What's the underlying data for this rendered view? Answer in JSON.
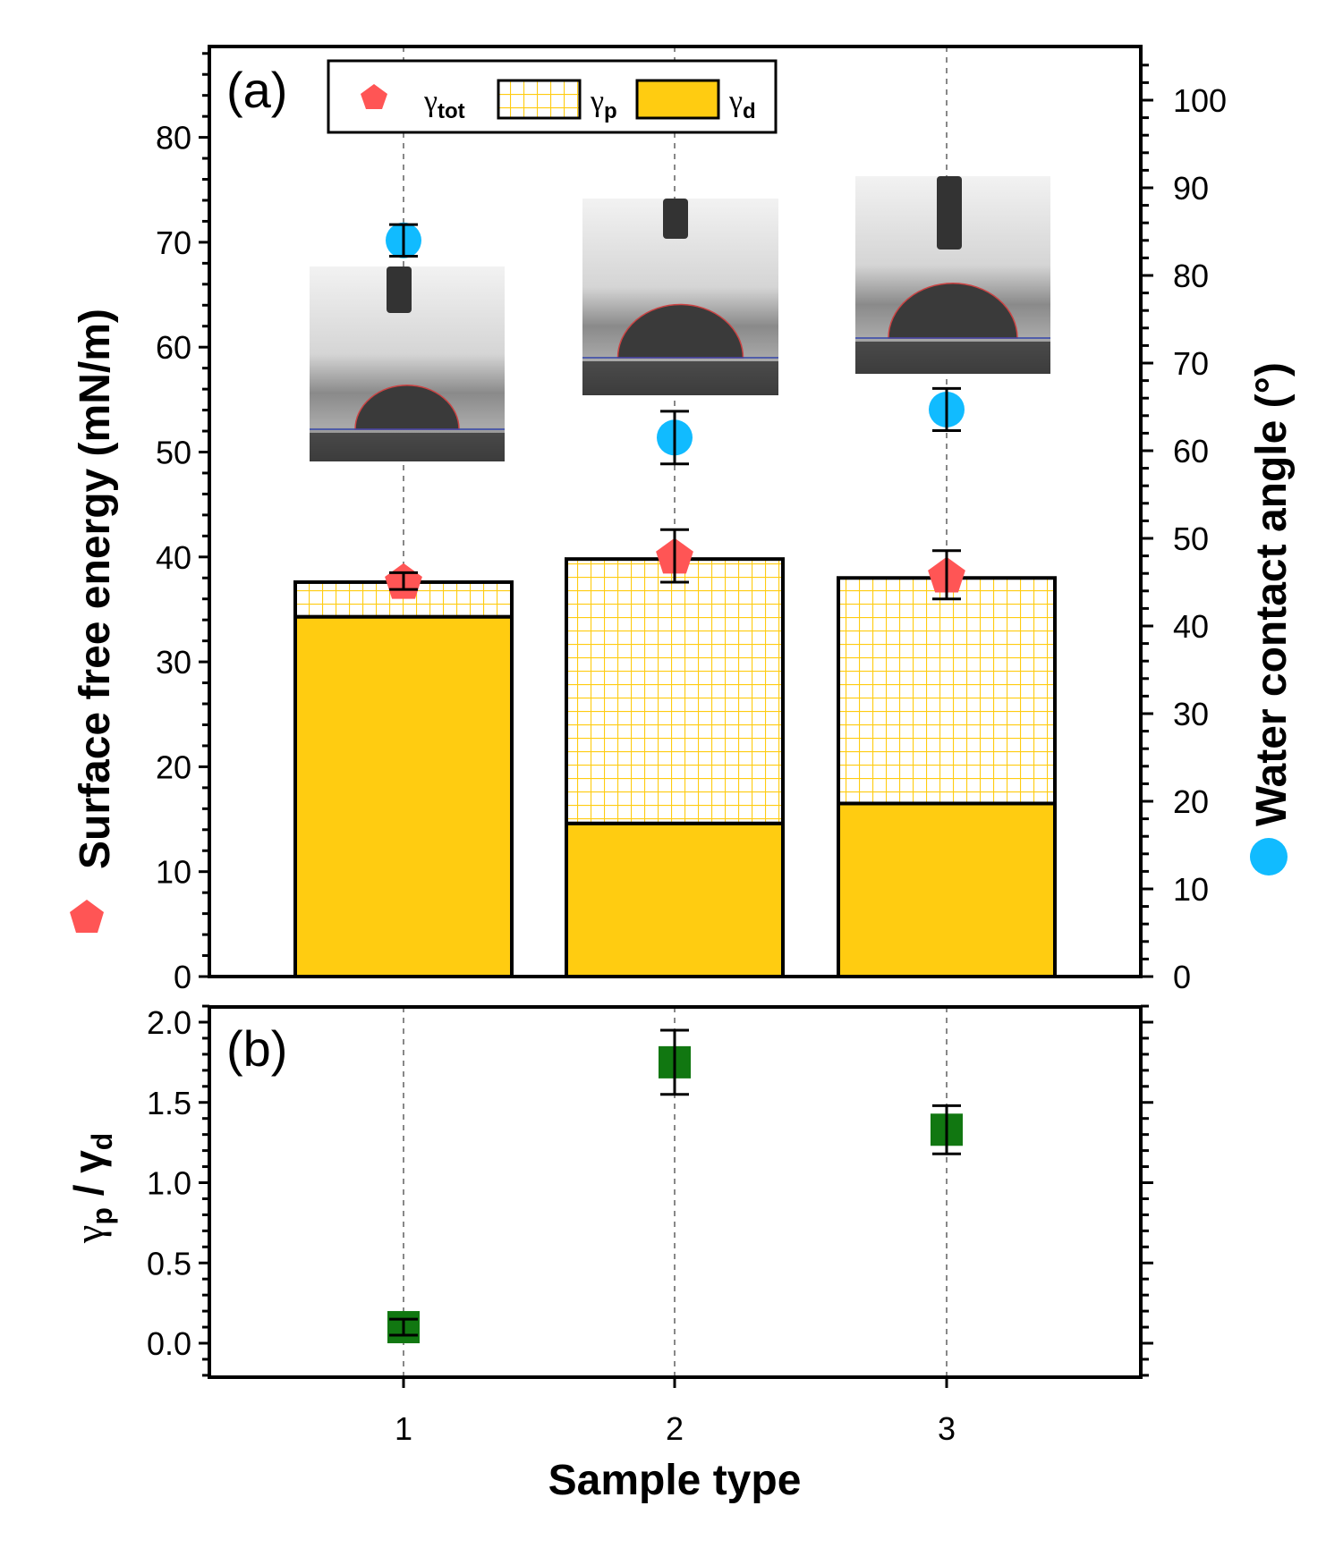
{
  "chart_data": [
    {
      "panel": "(a)",
      "type": "bar",
      "stacked": true,
      "categories": [
        "1",
        "2",
        "3"
      ],
      "series": [
        {
          "name": "γd",
          "values": [
            34.3,
            14.6,
            16.5
          ],
          "color": "#FFCC11",
          "pattern": "solid"
        },
        {
          "name": "γp",
          "values": [
            3.3,
            25.2,
            21.5
          ],
          "color": "#FFCC11",
          "pattern": "grid"
        }
      ],
      "points": [
        {
          "name": "γtot",
          "axis": "left",
          "marker": "pentagon",
          "color": "#FF5555",
          "values": [
            37.7,
            40.1,
            38.3
          ],
          "errors": [
            0.8,
            2.5,
            2.3
          ]
        },
        {
          "name": "Water contact angle",
          "axis": "right",
          "marker": "circle",
          "color": "#11BBFF",
          "values": [
            84.0,
            61.5,
            64.7
          ],
          "errors": [
            1.8,
            3.0,
            2.4
          ]
        }
      ],
      "ylabel": "Surface free energy (mN/m)",
      "y2label": "Water contact angle (°)",
      "ylim": [
        0,
        88
      ],
      "y2lim": [
        0,
        104.5
      ],
      "yticks": [
        "0",
        "10",
        "20",
        "30",
        "40",
        "50",
        "60",
        "70",
        "80"
      ],
      "y2ticks": [
        "0",
        "10",
        "20",
        "30",
        "40",
        "50",
        "60",
        "70",
        "80",
        "90",
        "100"
      ],
      "legend": {
        "placement": "top",
        "items": [
          {
            "label": "γ",
            "sub": "tot"
          },
          {
            "label": "γ",
            "sub": "p"
          },
          {
            "label": "γ",
            "sub": "d"
          }
        ]
      },
      "insets": [
        "sessile drop image sample 1",
        "sessile drop image sample 2",
        "sessile drop image sample 3"
      ]
    },
    {
      "panel": "(b)",
      "type": "scatter",
      "categories": [
        "1",
        "2",
        "3"
      ],
      "values": [
        0.1,
        1.75,
        1.33
      ],
      "errors": [
        0.05,
        0.2,
        0.15
      ],
      "marker": "square",
      "color": "#117711",
      "ylabel_main": "γ",
      "ylabel_sub1": "p",
      "ylabel_mid": " / γ",
      "ylabel_sub2": "d",
      "ylim": [
        -0.2,
        2.1
      ],
      "yticks": [
        "0.0",
        "0.5",
        "1.0",
        "1.5",
        "2.0"
      ],
      "xlabel": "Sample type",
      "xticks": [
        "1",
        "2",
        "3"
      ]
    }
  ]
}
